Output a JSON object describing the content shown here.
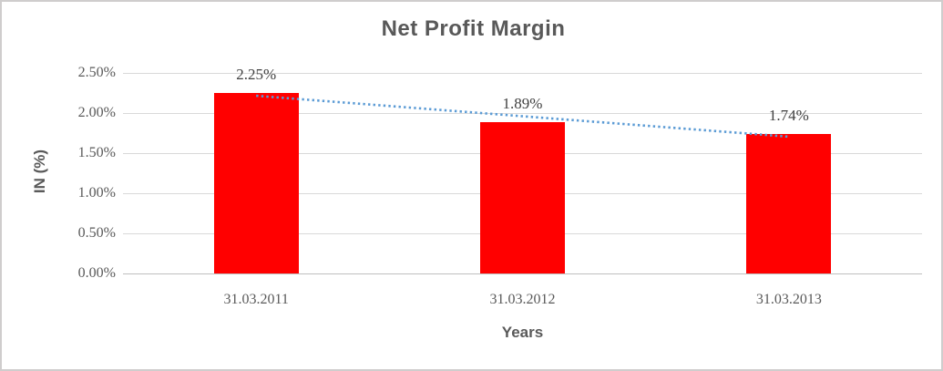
{
  "chart_data": {
    "type": "bar",
    "title": "Net Profit Margin",
    "xlabel": "Years",
    "ylabel": "IN (%)",
    "categories": [
      "31.03.2011",
      "31.03.2012",
      "31.03.2013"
    ],
    "values": [
      2.25,
      1.89,
      1.74
    ],
    "data_labels": [
      "2.25%",
      "1.89%",
      "1.74%"
    ],
    "ylim": [
      0,
      2.5
    ],
    "ytick_values": [
      0,
      0.5,
      1.0,
      1.5,
      2.0,
      2.5
    ],
    "ytick_labels": [
      "0.00%",
      "0.50%",
      "1.00%",
      "1.50%",
      "2.00%",
      "2.50%"
    ],
    "grid": true,
    "legend": "none",
    "bar_color": "#ff0000",
    "trendline": {
      "type": "linear",
      "style": "dotted",
      "color": "#5b9bd5",
      "y_endpoints": [
        2.215,
        1.705
      ]
    }
  }
}
